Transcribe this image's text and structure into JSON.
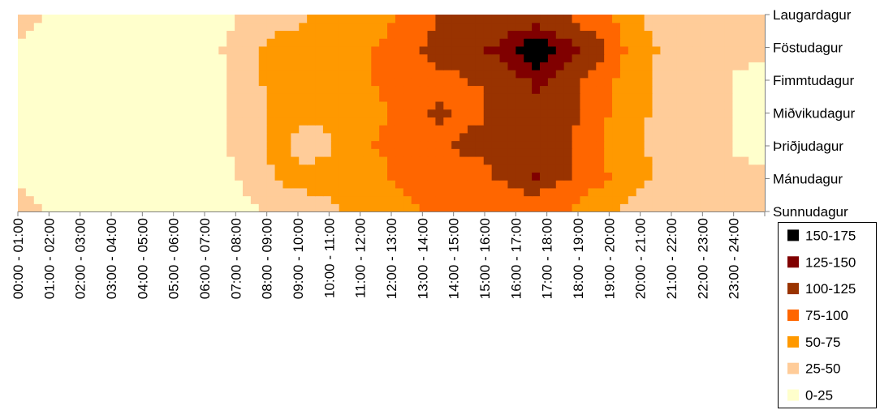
{
  "chart_data": {
    "type": "heatmap",
    "title": "",
    "xlabel": "",
    "ylabel": "",
    "x_categories": [
      "00:00 - 01:00",
      "01:00 - 02:00",
      "02:00 - 03:00",
      "03:00 - 04:00",
      "04:00 - 05:00",
      "05:00 - 06:00",
      "06:00 - 07:00",
      "07:00 - 08:00",
      "08:00 - 09:00",
      "09:00 - 10:00",
      "10:00 - 11:00",
      "11:00 - 12:00",
      "12:00 - 13:00",
      "13:00 - 14:00",
      "14:00 - 15:00",
      "15:00 - 16:00",
      "16:00 - 17:00",
      "17:00 - 18:00",
      "18:00 - 19:00",
      "19:00 - 20:00",
      "20:00 - 21:00",
      "21:00 - 22:00",
      "22:00 - 23:00",
      "23:00 - 24:00"
    ],
    "y_categories": [
      "Sunnudagur",
      "Mánudagur",
      "Þriðjudagur",
      "Miðvikudagur",
      "Fimmtudagur",
      "Föstudagur",
      "Laugardagur"
    ],
    "values": [
      [
        30,
        20,
        20,
        10,
        8,
        8,
        10,
        20,
        30,
        40,
        50,
        60,
        70,
        80,
        80,
        80,
        80,
        75,
        60,
        40,
        30,
        28,
        28,
        30
      ],
      [
        20,
        15,
        10,
        8,
        5,
        5,
        10,
        30,
        55,
        60,
        60,
        70,
        80,
        90,
        85,
        105,
        125,
        100,
        80,
        60,
        45,
        30,
        28,
        28
      ],
      [
        15,
        10,
        8,
        5,
        5,
        8,
        15,
        40,
        55,
        35,
        55,
        75,
        80,
        90,
        110,
        100,
        120,
        100,
        75,
        55,
        40,
        30,
        25,
        20
      ],
      [
        15,
        10,
        8,
        5,
        5,
        8,
        15,
        40,
        55,
        55,
        60,
        70,
        85,
        105,
        90,
        110,
        115,
        110,
        80,
        60,
        40,
        30,
        25,
        20
      ],
      [
        15,
        10,
        8,
        5,
        5,
        8,
        15,
        40,
        60,
        60,
        60,
        75,
        85,
        90,
        100,
        105,
        130,
        110,
        85,
        60,
        40,
        30,
        25,
        20
      ],
      [
        20,
        15,
        10,
        8,
        5,
        8,
        20,
        40,
        60,
        60,
        65,
        75,
        90,
        110,
        115,
        135,
        175,
        135,
        105,
        65,
        45,
        30,
        28,
        28
      ],
      [
        30,
        20,
        15,
        10,
        8,
        8,
        15,
        30,
        40,
        50,
        60,
        65,
        80,
        100,
        100,
        105,
        110,
        100,
        85,
        60,
        35,
        30,
        30,
        30
      ]
    ],
    "bins": [
      {
        "label": "150-175",
        "min": 150,
        "max": 175,
        "color": "#000000"
      },
      {
        "label": "125-150",
        "min": 125,
        "max": 150,
        "color": "#800000"
      },
      {
        "label": "100-125",
        "min": 100,
        "max": 125,
        "color": "#993300"
      },
      {
        "label": "75-100",
        "min": 75,
        "max": 100,
        "color": "#FF6600"
      },
      {
        "label": "50-75",
        "min": 50,
        "max": 75,
        "color": "#FF9900"
      },
      {
        "label": "25-50",
        "min": 25,
        "max": 50,
        "color": "#FFCC99"
      },
      {
        "label": "0-25",
        "min": 0,
        "max": 25,
        "color": "#FFFFCC"
      }
    ],
    "legend_position": "bottom-right",
    "grid": false
  }
}
